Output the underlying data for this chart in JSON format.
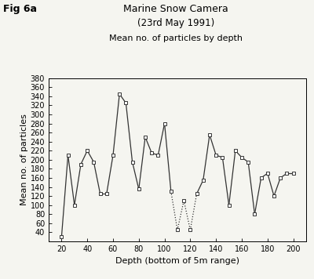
{
  "title_line1": "Marine Snow Camera",
  "title_line2": "(23rd May 1991)",
  "subtitle": "Mean no. of particles by depth",
  "fig_label": "Fig 6a",
  "xlabel": "Depth (bottom of 5m range)",
  "ylabel": "Mean no. of particles",
  "xlim": [
    10,
    210
  ],
  "ylim": [
    20,
    380
  ],
  "xticks": [
    20,
    40,
    60,
    80,
    100,
    120,
    140,
    160,
    180,
    200
  ],
  "yticks": [
    40,
    60,
    80,
    100,
    120,
    140,
    160,
    180,
    200,
    220,
    240,
    260,
    280,
    300,
    320,
    340,
    360,
    380
  ],
  "x": [
    20,
    25,
    30,
    35,
    40,
    45,
    50,
    55,
    60,
    65,
    70,
    75,
    80,
    85,
    90,
    95,
    100,
    105,
    110,
    115,
    120,
    125,
    130,
    135,
    140,
    145,
    150,
    155,
    160,
    165,
    170,
    175,
    180,
    185,
    190,
    195,
    200
  ],
  "y": [
    30,
    210,
    100,
    190,
    220,
    195,
    125,
    125,
    210,
    345,
    325,
    195,
    135,
    250,
    215,
    210,
    280,
    130,
    45,
    110,
    45,
    125,
    155,
    255,
    210,
    205,
    100,
    220,
    205,
    195,
    80,
    160,
    170,
    120,
    160,
    170,
    170
  ],
  "line_color": "#333333",
  "marker": "s",
  "marker_size": 3.5,
  "marker_facecolor": "white",
  "marker_edgecolor": "#333333",
  "marker_edgewidth": 0.7,
  "line_width": 0.9,
  "background_color": "#f5f5f0",
  "dotted_segment_indices": [
    [
      17,
      18
    ],
    [
      18,
      19
    ],
    [
      19,
      20
    ],
    [
      20,
      21
    ]
  ]
}
